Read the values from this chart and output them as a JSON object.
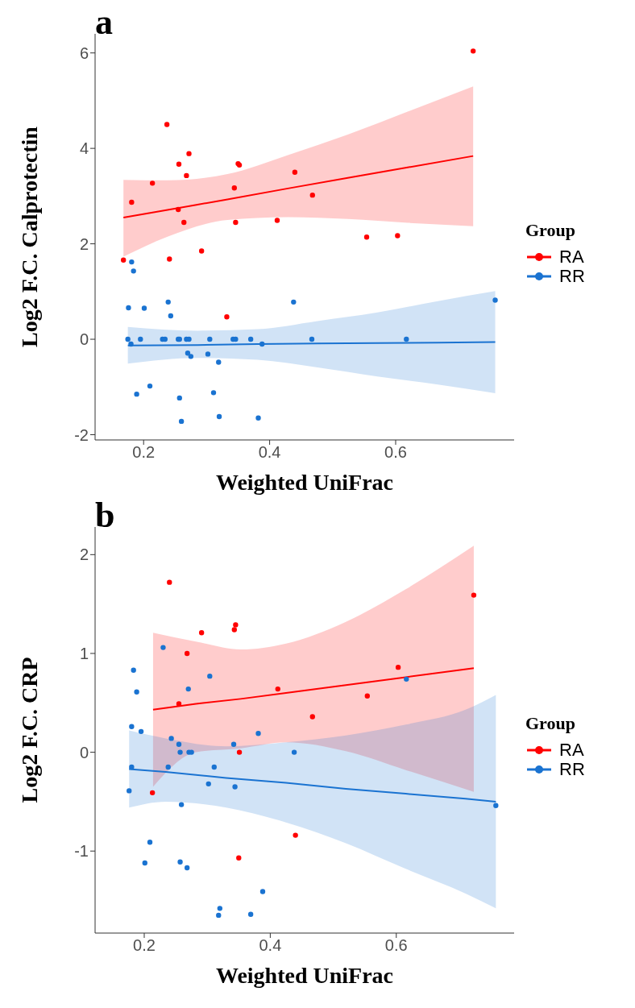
{
  "chart_data": [
    {
      "type": "scatter",
      "title": "a",
      "xlabel": "Weighted UniFrac",
      "ylabel": "Log2 F.C. Calprotectin",
      "legend_title": "Group",
      "legend": "right",
      "marker": "circle",
      "xlim": [
        0.123,
        0.788
      ],
      "ylim": [
        -2.11,
        6.4
      ],
      "xticks": [
        0.2,
        0.4,
        0.6
      ],
      "yticks": [
        -2,
        0,
        2,
        4,
        6
      ],
      "series": [
        {
          "name": "RA",
          "color": "#ff0000",
          "x": [
            0.723,
            0.237,
            0.272,
            0.256,
            0.35,
            0.352,
            0.268,
            0.214,
            0.44,
            0.344,
            0.181,
            0.468,
            0.255,
            0.264,
            0.346,
            0.412,
            0.554,
            0.603,
            0.168,
            0.241,
            0.292,
            0.332
          ],
          "values": [
            6.04,
            4.5,
            3.89,
            3.67,
            3.68,
            3.65,
            3.43,
            3.27,
            3.5,
            3.17,
            2.87,
            3.02,
            2.72,
            2.45,
            2.45,
            2.49,
            2.14,
            2.17,
            1.66,
            1.68,
            1.85,
            0.47
          ]
        },
        {
          "name": "RR",
          "color": "#1a73d1",
          "x": [
            0.181,
            0.184,
            0.176,
            0.201,
            0.239,
            0.243,
            0.438,
            0.758,
            0.175,
            0.195,
            0.23,
            0.234,
            0.255,
            0.257,
            0.268,
            0.272,
            0.305,
            0.342,
            0.346,
            0.37,
            0.467,
            0.617,
            0.18,
            0.388,
            0.27,
            0.275,
            0.302,
            0.319,
            0.21,
            0.189,
            0.311,
            0.257,
            0.32,
            0.26,
            0.382
          ],
          "values": [
            1.62,
            1.43,
            0.66,
            0.65,
            0.78,
            0.49,
            0.78,
            0.82,
            0,
            0,
            0,
            0,
            0,
            0,
            0,
            0,
            0,
            0,
            0,
            0,
            0,
            0,
            -0.1,
            -0.1,
            -0.29,
            -0.36,
            -0.31,
            -0.48,
            -0.98,
            -1.15,
            -1.12,
            -1.23,
            -1.62,
            -1.72,
            -1.65
          ]
        },
        {
          "type": "line",
          "marker": "none",
          "color": "#ff0000",
          "x": [
            0.168,
            0.238,
            0.333,
            0.429,
            0.524,
            0.619,
            0.723
          ],
          "values": [
            2.55,
            2.71,
            2.93,
            3.16,
            3.38,
            3.6,
            3.84
          ],
          "lower": [
            1.73,
            2.15,
            2.5,
            2.56,
            2.52,
            2.44,
            2.37
          ],
          "upper": [
            3.34,
            3.33,
            3.46,
            3.86,
            4.29,
            4.77,
            5.3
          ]
        },
        {
          "type": "line",
          "marker": "none",
          "color": "#1a73d1",
          "x": [
            0.175,
            0.286,
            0.381,
            0.476,
            0.571,
            0.667,
            0.758
          ],
          "values": [
            -0.13,
            -0.12,
            -0.1,
            -0.09,
            -0.08,
            -0.07,
            -0.06
          ],
          "lower": [
            -0.51,
            -0.39,
            -0.43,
            -0.59,
            -0.78,
            -0.95,
            -1.13
          ],
          "upper": [
            0.26,
            0.18,
            0.21,
            0.38,
            0.56,
            0.8,
            1.01
          ]
        }
      ]
    },
    {
      "type": "scatter",
      "title": "b",
      "xlabel": "Weighted UniFrac",
      "ylabel": "Log2 F.C. CRP",
      "legend_title": "Group",
      "legend": "right",
      "marker": "circle",
      "xlim": [
        0.122,
        0.787
      ],
      "ylim": [
        -1.83,
        2.28
      ],
      "xticks": [
        0.2,
        0.4,
        0.6
      ],
      "yticks": [
        -1,
        0,
        1,
        2
      ],
      "series": [
        {
          "name": "RA",
          "color": "#ff0000",
          "x": [
            0.24,
            0.345,
            0.343,
            0.291,
            0.268,
            0.723,
            0.603,
            0.412,
            0.554,
            0.255,
            0.467,
            0.351,
            0.213,
            0.44,
            0.35
          ],
          "values": [
            1.72,
            1.29,
            1.24,
            1.21,
            1.0,
            1.59,
            0.86,
            0.64,
            0.57,
            0.49,
            0.36,
            0,
            -0.41,
            -0.84,
            -1.07
          ]
        },
        {
          "name": "RR",
          "color": "#1a73d1",
          "x": [
            0.183,
            0.188,
            0.23,
            0.304,
            0.27,
            0.616,
            0.18,
            0.195,
            0.243,
            0.255,
            0.257,
            0.271,
            0.275,
            0.342,
            0.381,
            0.438,
            0.18,
            0.238,
            0.311,
            0.176,
            0.302,
            0.344,
            0.259,
            0.758,
            0.209,
            0.201,
            0.257,
            0.268,
            0.388,
            0.32,
            0.318,
            0.369
          ],
          "values": [
            0.83,
            0.61,
            1.06,
            0.77,
            0.64,
            0.74,
            0.26,
            0.21,
            0.14,
            0.08,
            0,
            0,
            0,
            0.08,
            0.19,
            0,
            -0.15,
            -0.15,
            -0.15,
            -0.39,
            -0.32,
            -0.35,
            -0.53,
            -0.54,
            -0.91,
            -1.12,
            -1.11,
            -1.17,
            -1.41,
            -1.58,
            -1.65,
            -1.64
          ]
        },
        {
          "type": "line",
          "marker": "none",
          "color": "#ff0000",
          "x": [
            0.214,
            0.282,
            0.353,
            0.425,
            0.52,
            0.615,
            0.723
          ],
          "values": [
            0.43,
            0.49,
            0.54,
            0.6,
            0.68,
            0.76,
            0.85
          ],
          "lower": [
            -0.35,
            0.0,
            0.04,
            0.1,
            0.01,
            -0.18,
            -0.4
          ],
          "upper": [
            1.21,
            1.12,
            1.04,
            1.1,
            1.32,
            1.65,
            2.09
          ]
        },
        {
          "type": "line",
          "marker": "none",
          "color": "#1a73d1",
          "x": [
            0.176,
            0.234,
            0.33,
            0.425,
            0.52,
            0.615,
            0.71,
            0.758
          ],
          "values": [
            -0.17,
            -0.2,
            -0.26,
            -0.31,
            -0.37,
            -0.42,
            -0.47,
            -0.5
          ],
          "lower": [
            -0.56,
            -0.5,
            -0.56,
            -0.71,
            -0.92,
            -1.18,
            -1.43,
            -1.58
          ],
          "upper": [
            0.22,
            0.14,
            0.06,
            0.1,
            0.17,
            0.28,
            0.43,
            0.58
          ]
        }
      ]
    }
  ]
}
